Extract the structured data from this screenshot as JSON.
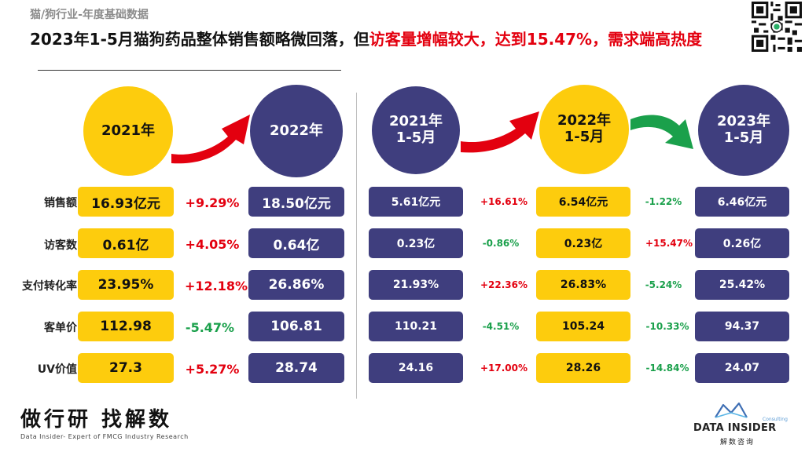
{
  "header": {
    "subtitle": "猫/狗行业-年度基础数据",
    "headline_part1": "2023年1-5月猫狗药品整体销售额略微回落，但",
    "headline_highlight": "访客量增幅较大，达到15.47%，需求端高热度"
  },
  "row_labels": [
    "销售额",
    "访客数",
    "支付转化率",
    "客单价",
    "UV价值"
  ],
  "annual": {
    "period_a": "2021年",
    "period_b": "2022年",
    "values_a": [
      "16.93亿元",
      "0.61亿",
      "23.95%",
      "112.98",
      "27.3"
    ],
    "changes_ab": [
      "+9.29%",
      "+4.05%",
      "+12.18%",
      "-5.47%",
      "+5.27%"
    ],
    "values_b": [
      "18.50亿元",
      "0.64亿",
      "26.86%",
      "106.81",
      "28.74"
    ]
  },
  "ytd": {
    "period_a_line1": "2021年",
    "period_a_line2": "1-5月",
    "period_b_line1": "2022年",
    "period_b_line2": "1-5月",
    "period_c_line1": "2023年",
    "period_c_line2": "1-5月",
    "values_a": [
      "5.61亿元",
      "0.23亿",
      "21.93%",
      "110.21",
      "24.16"
    ],
    "changes_ab": [
      "+16.61%",
      "-0.86%",
      "+22.36%",
      "-4.51%",
      "+17.00%"
    ],
    "values_b": [
      "6.54亿元",
      "0.23亿",
      "26.83%",
      "105.24",
      "28.26"
    ],
    "changes_bc": [
      "-1.22%",
      "+15.47%",
      "-5.24%",
      "-10.33%",
      "-14.84%"
    ],
    "values_c": [
      "6.46亿元",
      "0.26亿",
      "25.42%",
      "94.37",
      "24.07"
    ]
  },
  "colors": {
    "yellow": "#fdcc0d",
    "navy": "#3f3e7e",
    "up": "#e3000f",
    "down": "#1aa04b"
  },
  "footer": {
    "brand_cn": "做行研 找解数",
    "brand_en": "Data Insider- Expert of FMCG Industry Research",
    "logo_name": "DATA INSIDER",
    "logo_consulting": "Consulting",
    "logo_cn": "解数咨询"
  },
  "icons": {
    "qr": "qr-code-icon",
    "arrow_up": "red-arrow-icon",
    "arrow_down": "green-arrow-icon",
    "logo": "data-insider-logo-icon"
  }
}
